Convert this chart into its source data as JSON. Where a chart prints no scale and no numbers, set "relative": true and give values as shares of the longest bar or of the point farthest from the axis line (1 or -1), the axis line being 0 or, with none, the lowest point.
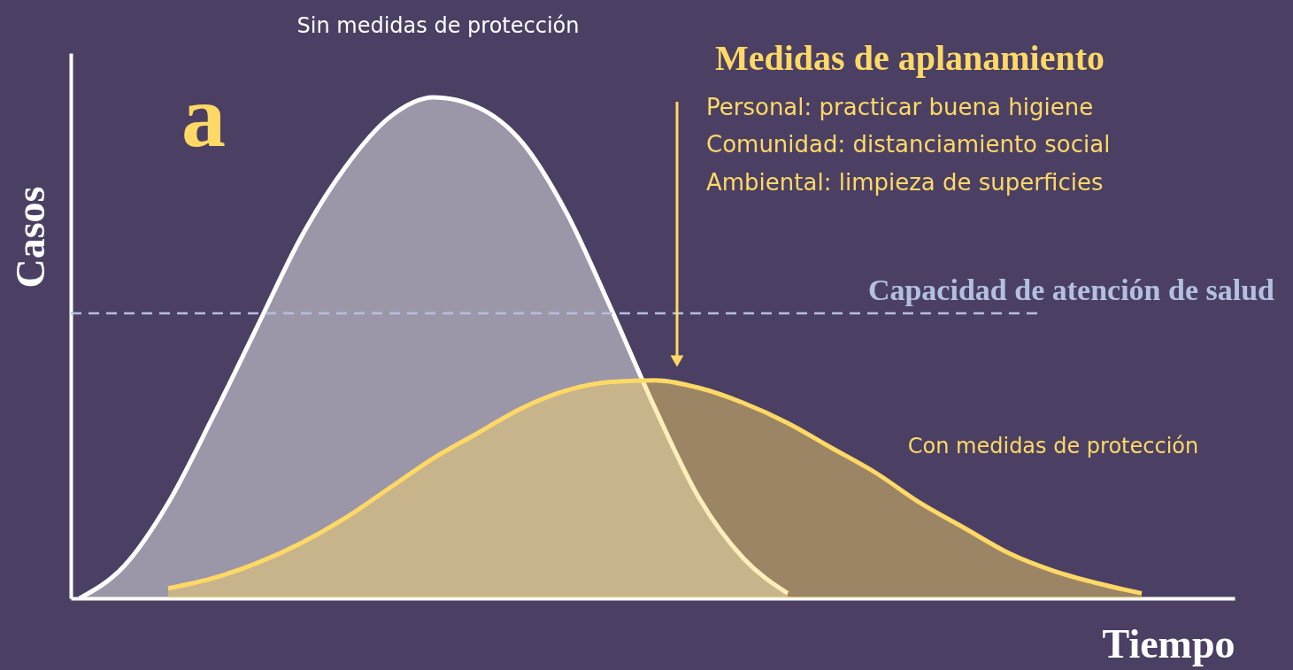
{
  "chart_data": {
    "type": "area",
    "relative": true,
    "xlabel": "Tiempo",
    "ylabel": "Casos",
    "legend": false,
    "grid": false,
    "tick_labels": false,
    "categories": [
      null,
      null,
      null,
      null,
      null,
      null,
      null,
      null,
      null,
      null,
      null,
      null,
      null,
      null,
      null,
      null,
      null,
      null,
      null,
      null,
      null,
      null,
      null,
      null,
      null
    ],
    "series": [
      {
        "name": "Sin medidas de protección",
        "color": "#ffffff",
        "values": [
          0,
          0.064,
          0.19,
          0.36,
          0.54,
          0.72,
          0.86,
          0.96,
          1.0,
          0.98,
          0.91,
          0.77,
          0.58,
          0.38,
          0.2,
          0.08,
          0.01,
          null,
          null,
          null,
          null,
          null,
          null,
          null,
          null
        ]
      },
      {
        "name": "Con medidas de protección",
        "color": "#ffd966",
        "values": [
          null,
          null,
          0.02,
          0.04,
          0.07,
          0.11,
          0.16,
          0.22,
          0.28,
          0.33,
          0.38,
          0.415,
          0.432,
          0.435,
          0.42,
          0.39,
          0.35,
          0.3,
          0.25,
          0.19,
          0.14,
          0.09,
          0.055,
          0.03,
          0.01
        ]
      }
    ],
    "ref_lines": [
      {
        "axis": "y",
        "value": 0.569,
        "label": "Capacidad de atención de salud",
        "color": "#b4c0e0",
        "line_style": "dashed"
      }
    ],
    "annotations": [
      "a",
      "Medidas de aplanamiento",
      "Personal: practicar buena higiene",
      "Comunidad: distanciamiento social",
      "Ambiental: limpieza de superficies"
    ]
  }
}
